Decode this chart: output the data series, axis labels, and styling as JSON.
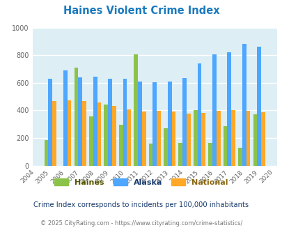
{
  "title": "Haines Violent Crime Index",
  "years_labels": [
    "2004",
    "2005",
    "2006",
    "2007",
    "2008",
    "2009",
    "2010",
    "2011",
    "2012",
    "2013",
    "2014",
    "2015",
    "2016",
    "2017",
    "2018",
    "2019",
    "2020"
  ],
  "haines": [
    0,
    185,
    0,
    710,
    355,
    440,
    295,
    805,
    160,
    270,
    163,
    400,
    163,
    285,
    128,
    370,
    0
  ],
  "alaska": [
    0,
    628,
    690,
    638,
    645,
    628,
    630,
    608,
    605,
    608,
    633,
    738,
    805,
    822,
    880,
    860,
    0
  ],
  "national": [
    0,
    467,
    473,
    466,
    458,
    432,
    405,
    394,
    396,
    390,
    376,
    382,
    396,
    400,
    395,
    385,
    0
  ],
  "haines_color": "#8bc34a",
  "alaska_color": "#4da6ff",
  "national_color": "#ffa726",
  "bg_color": "#ddeef5",
  "title_color": "#1a7abf",
  "ylim": [
    0,
    1000
  ],
  "yticks": [
    0,
    200,
    400,
    600,
    800,
    1000
  ],
  "subtitle": "Crime Index corresponds to incidents per 100,000 inhabitants",
  "footer": "© 2025 CityRating.com - https://www.cityrating.com/crime-statistics/",
  "subtitle_color": "#1a3c6e",
  "footer_color": "#777777",
  "legend_haines_color": "#555500",
  "legend_alaska_color": "#1a3c6e",
  "legend_national_color": "#8b6914"
}
